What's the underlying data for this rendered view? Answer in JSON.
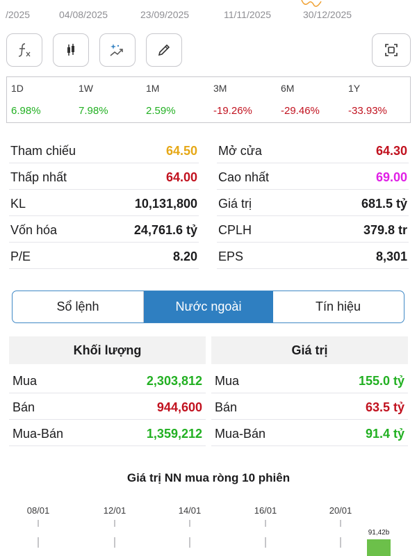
{
  "date_axis": [
    "/2025",
    "04/08/2025",
    "23/09/2025",
    "11/11/2025",
    "30/12/2025"
  ],
  "toolbar": {
    "icons": [
      "function-icon",
      "candlestick-icon",
      "magic-chart-icon",
      "pencil-icon",
      "fullscreen-icon"
    ]
  },
  "performance": [
    {
      "label": "1D",
      "value": "6.98%",
      "trend": "up"
    },
    {
      "label": "1W",
      "value": "7.98%",
      "trend": "up"
    },
    {
      "label": "1M",
      "value": "2.59%",
      "trend": "up"
    },
    {
      "label": "3M",
      "value": "-19.26%",
      "trend": "down"
    },
    {
      "label": "6M",
      "value": "-29.46%",
      "trend": "down"
    },
    {
      "label": "1Y",
      "value": "-33.93%",
      "trend": "down"
    }
  ],
  "stats": {
    "left": [
      {
        "label": "Tham chiếu",
        "value": "64.50",
        "color": "#e6a817"
      },
      {
        "label": "Thấp nhất",
        "value": "64.00",
        "color": "#c1121f"
      },
      {
        "label": "KL",
        "value": "10,131,800",
        "color": "#1c1c1e"
      },
      {
        "label": "Vốn hóa",
        "value": "24,761.6 tỷ",
        "color": "#1c1c1e"
      },
      {
        "label": "P/E",
        "value": "8.20",
        "color": "#1c1c1e"
      }
    ],
    "right": [
      {
        "label": "Mở cửa",
        "value": "64.30",
        "color": "#c1121f"
      },
      {
        "label": "Cao nhất",
        "value": "69.00",
        "color": "#e020e6"
      },
      {
        "label": "Giá trị",
        "value": "681.5 tỷ",
        "color": "#1c1c1e"
      },
      {
        "label": "CPLH",
        "value": "379.8 tr",
        "color": "#1c1c1e"
      },
      {
        "label": "EPS",
        "value": "8,301",
        "color": "#1c1c1e"
      }
    ]
  },
  "tabs": [
    {
      "label": "Sổ lệnh",
      "active": false
    },
    {
      "label": "Nước ngoài",
      "active": true
    },
    {
      "label": "Tín hiệu",
      "active": false
    }
  ],
  "foreign": {
    "volume_header": "Khối lượng",
    "value_header": "Giá trị",
    "volume_rows": [
      {
        "label": "Mua",
        "value": "2,303,812",
        "color": "#22b022"
      },
      {
        "label": "Bán",
        "value": "944,600",
        "color": "#c1121f"
      },
      {
        "label": "Mua-Bán",
        "value": "1,359,212",
        "color": "#22b022"
      }
    ],
    "value_rows": [
      {
        "label": "Mua",
        "value": "155.0 tỷ",
        "color": "#22b022"
      },
      {
        "label": "Bán",
        "value": "63.5 tỷ",
        "color": "#c1121f"
      },
      {
        "label": "Mua-Bán",
        "value": "91.4 tỷ",
        "color": "#22b022"
      }
    ]
  },
  "chart_data": {
    "type": "bar",
    "title": "Giá trị NN mua ròng 10 phiên",
    "tick_labels": [
      "08/01",
      "12/01",
      "14/01",
      "16/01",
      "20/01"
    ],
    "visible_bars": [
      {
        "label": "91,42b",
        "value": 91.42
      }
    ],
    "bar_color": "#6cc04a"
  },
  "colors": {
    "up": "#22b022",
    "down": "#c1121f",
    "accent": "#2f7fc1"
  }
}
